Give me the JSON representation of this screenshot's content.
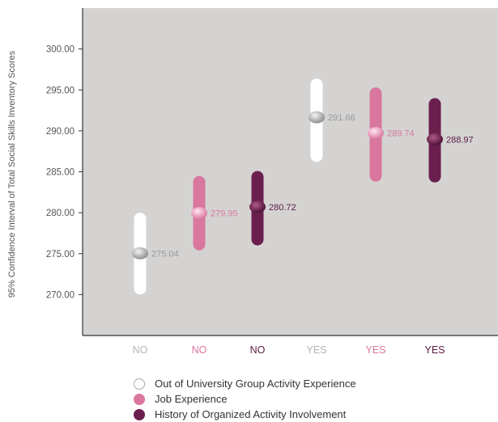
{
  "chart_data": {
    "type": "scatter",
    "title": "",
    "xlabel": "",
    "ylabel": "95% Confidence Interval of Total Social Skills Inventory Scores",
    "ylim": [
      265,
      305
    ],
    "yticks": [
      "270.00",
      "275.00",
      "280.00",
      "285.00",
      "290.00",
      "295.00",
      "300.00"
    ],
    "grid": false,
    "legend_position": "bottom",
    "categories": [
      "NO",
      "NO",
      "NO",
      "YES",
      "YES",
      "YES"
    ],
    "series": [
      {
        "name": "Out of University Group Activity Experience",
        "color": "#ffffff",
        "label_color": "#999999",
        "points": [
          {
            "category_index": 0,
            "mean": 275.04,
            "lower": 270.0,
            "upper": 280.0,
            "label": "275.04"
          },
          {
            "category_index": 3,
            "mean": 291.66,
            "lower": 286.2,
            "upper": 296.4,
            "label": "291.66"
          }
        ]
      },
      {
        "name": "Job Experience",
        "color": "#d9779f",
        "label_color": "#d9779f",
        "points": [
          {
            "category_index": 1,
            "mean": 279.95,
            "lower": 275.4,
            "upper": 284.5,
            "label": "279.95"
          },
          {
            "category_index": 4,
            "mean": 289.74,
            "lower": 283.8,
            "upper": 295.3,
            "label": "289.74"
          }
        ]
      },
      {
        "name": "History of Organized Activity Involvement",
        "color": "#6b1f4f",
        "label_color": "#5a1a42",
        "points": [
          {
            "category_index": 2,
            "mean": 280.72,
            "lower": 276.0,
            "upper": 285.1,
            "label": "280.72"
          },
          {
            "category_index": 5,
            "mean": 288.97,
            "lower": 283.7,
            "upper": 294.0,
            "label": "288.97"
          }
        ]
      }
    ]
  },
  "legend": [
    {
      "label": "Out of University Group Activity Experience",
      "color": "#ffffff",
      "border": "#aaaaaa"
    },
    {
      "label": "Job Experience",
      "color": "#d9779f",
      "border": "#d9779f"
    },
    {
      "label": "History of Organized Activity Involvement",
      "color": "#6b1f4f",
      "border": "#6b1f4f"
    }
  ]
}
